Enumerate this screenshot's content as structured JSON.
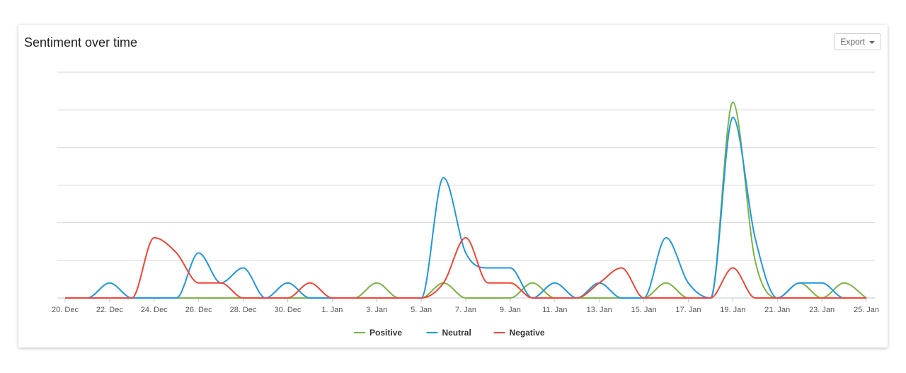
{
  "header": {
    "title": "Sentiment over time",
    "export_label": "Export"
  },
  "chart_data": {
    "type": "line",
    "title": "Sentiment over time",
    "xlabel": "",
    "ylabel": "",
    "ylim": [
      0,
      6
    ],
    "grid": true,
    "legend_position": "bottom",
    "x_tick_labels": [
      "20. Dec",
      "22. Dec",
      "24. Dec",
      "26. Dec",
      "28. Dec",
      "30. Dec",
      "1. Jan",
      "3. Jan",
      "5. Jan",
      "7. Jan",
      "9. Jan",
      "11. Jan",
      "13. Jan",
      "15. Jan",
      "17. Jan",
      "19. Jan",
      "21. Jan",
      "23. Jan",
      "25. Jan"
    ],
    "x": [
      "20. Dec",
      "21. Dec",
      "22. Dec",
      "23. Dec",
      "24. Dec",
      "25. Dec",
      "26. Dec",
      "27. Dec",
      "28. Dec",
      "29. Dec",
      "30. Dec",
      "31. Dec",
      "1. Jan",
      "2. Jan",
      "3. Jan",
      "4. Jan",
      "5. Jan",
      "6. Jan",
      "7. Jan",
      "8. Jan",
      "9. Jan",
      "10. Jan",
      "11. Jan",
      "12. Jan",
      "13. Jan",
      "14. Jan",
      "15. Jan",
      "16. Jan",
      "17. Jan",
      "18. Jan",
      "19. Jan",
      "20. Jan",
      "21. Jan",
      "22. Jan",
      "23. Jan",
      "24. Jan",
      "25. Jan"
    ],
    "series": [
      {
        "name": "Positive",
        "color": "#7cb342",
        "values": [
          0,
          0,
          0,
          0,
          0,
          0,
          0,
          0,
          0,
          0,
          0,
          0,
          0,
          0,
          0.4,
          0,
          0,
          0.4,
          0,
          0,
          0,
          0.4,
          0,
          0,
          0,
          0,
          0,
          0.4,
          0,
          0,
          5.2,
          1.0,
          0,
          0.4,
          0,
          0.4,
          0
        ]
      },
      {
        "name": "Neutral",
        "color": "#1f97e3",
        "values": [
          0,
          0,
          0.4,
          0,
          0,
          0,
          1.2,
          0.4,
          0.8,
          0,
          0.4,
          0,
          0,
          0,
          0,
          0,
          0,
          3.2,
          1.2,
          0.8,
          0.8,
          0,
          0.4,
          0,
          0.4,
          0,
          0,
          1.6,
          0.4,
          0,
          4.8,
          1.6,
          0,
          0.4,
          0.4,
          0,
          0
        ]
      },
      {
        "name": "Negative",
        "color": "#f44336",
        "values": [
          0,
          0,
          0,
          0,
          1.6,
          1.2,
          0.4,
          0.4,
          0,
          0,
          0,
          0.4,
          0,
          0,
          0,
          0,
          0,
          0.4,
          1.6,
          0.4,
          0.4,
          0,
          0,
          0,
          0.4,
          0.8,
          0,
          0,
          0,
          0,
          0.8,
          0,
          0,
          0,
          0,
          0,
          0
        ]
      }
    ]
  }
}
